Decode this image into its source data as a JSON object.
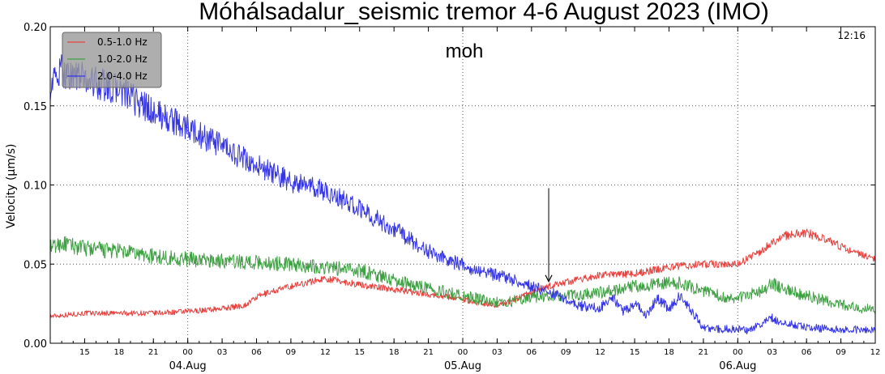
{
  "chart_data": {
    "type": "line",
    "title": "Móhálsadalur_seismic tremor 4-6 August 2023 (IMO)",
    "station": "moh",
    "timestamp": "12:16",
    "ylabel": "Velocity (μm/s)",
    "ylim": [
      0.0,
      0.2
    ],
    "yticks": [
      "0.00",
      "0.05",
      "0.10",
      "0.15",
      "0.20"
    ],
    "x_unit": "hour",
    "xlim": [
      12,
      84
    ],
    "xticks": [
      {
        "x": 15,
        "label": "15"
      },
      {
        "x": 18,
        "label": "18"
      },
      {
        "x": 21,
        "label": "21"
      },
      {
        "x": 24,
        "label": "00"
      },
      {
        "x": 27,
        "label": "03"
      },
      {
        "x": 30,
        "label": "06"
      },
      {
        "x": 33,
        "label": "09"
      },
      {
        "x": 36,
        "label": "12"
      },
      {
        "x": 39,
        "label": "15"
      },
      {
        "x": 42,
        "label": "18"
      },
      {
        "x": 45,
        "label": "21"
      },
      {
        "x": 48,
        "label": "00"
      },
      {
        "x": 51,
        "label": "03"
      },
      {
        "x": 54,
        "label": "06"
      },
      {
        "x": 57,
        "label": "09"
      },
      {
        "x": 60,
        "label": "12"
      },
      {
        "x": 63,
        "label": "15"
      },
      {
        "x": 66,
        "label": "18"
      },
      {
        "x": 69,
        "label": "21"
      },
      {
        "x": 72,
        "label": "00"
      },
      {
        "x": 75,
        "label": "03"
      },
      {
        "x": 78,
        "label": "06"
      },
      {
        "x": 81,
        "label": "09"
      },
      {
        "x": 84,
        "label": "12"
      }
    ],
    "date_labels": [
      {
        "x": 24,
        "label": "04.Aug"
      },
      {
        "x": 48,
        "label": "05.Aug"
      },
      {
        "x": 72,
        "label": "06.Aug"
      }
    ],
    "grid": true,
    "legend_position": "top-left",
    "arrow": {
      "x": 55.5,
      "y_top": 0.098,
      "y_tip": 0.039
    },
    "series": [
      {
        "name": "0.5-1.0 Hz",
        "color": "#e8413e",
        "x": [
          12,
          15,
          18,
          21,
          24,
          27,
          29,
          30,
          31,
          33,
          36,
          39,
          42,
          45,
          48,
          49,
          50,
          51,
          52,
          54,
          56,
          60,
          63,
          66,
          69,
          72,
          74,
          75,
          76,
          78,
          80,
          82,
          84
        ],
        "y": [
          0.017,
          0.019,
          0.019,
          0.019,
          0.02,
          0.022,
          0.024,
          0.029,
          0.032,
          0.036,
          0.041,
          0.037,
          0.034,
          0.031,
          0.028,
          0.026,
          0.025,
          0.024,
          0.026,
          0.032,
          0.037,
          0.043,
          0.044,
          0.048,
          0.05,
          0.05,
          0.058,
          0.064,
          0.068,
          0.07,
          0.064,
          0.058,
          0.054
        ]
      },
      {
        "name": "1.0-2.0 Hz",
        "color": "#3fa043",
        "x": [
          12,
          13,
          15,
          18,
          21,
          24,
          27,
          30,
          33,
          36,
          39,
          42,
          45,
          48,
          50,
          51,
          52,
          54,
          57,
          60,
          63,
          66,
          67,
          69,
          71,
          72,
          74,
          75,
          76,
          78,
          80,
          82,
          84
        ],
        "y": [
          0.06,
          0.063,
          0.06,
          0.058,
          0.055,
          0.053,
          0.052,
          0.051,
          0.05,
          0.048,
          0.046,
          0.04,
          0.035,
          0.03,
          0.027,
          0.026,
          0.026,
          0.029,
          0.03,
          0.032,
          0.036,
          0.038,
          0.038,
          0.033,
          0.029,
          0.029,
          0.033,
          0.038,
          0.034,
          0.03,
          0.026,
          0.023,
          0.021
        ]
      },
      {
        "name": "2.0-4.0 Hz",
        "color": "#3535e6",
        "x": [
          12,
          13,
          15,
          18,
          21,
          24,
          27,
          30,
          33,
          36,
          39,
          42,
          45,
          48,
          51,
          54,
          56,
          57,
          58,
          60,
          61,
          62,
          63,
          64,
          65,
          66,
          67,
          68,
          69,
          70,
          72,
          73,
          74,
          75,
          76,
          78,
          80,
          82,
          83,
          84
        ],
        "y": [
          0.163,
          0.172,
          0.167,
          0.16,
          0.146,
          0.136,
          0.124,
          0.112,
          0.102,
          0.096,
          0.085,
          0.072,
          0.058,
          0.049,
          0.043,
          0.036,
          0.031,
          0.028,
          0.024,
          0.022,
          0.03,
          0.02,
          0.025,
          0.018,
          0.028,
          0.022,
          0.03,
          0.02,
          0.01,
          0.009,
          0.009,
          0.008,
          0.012,
          0.016,
          0.013,
          0.01,
          0.009,
          0.009,
          0.008,
          0.008
        ]
      }
    ]
  }
}
